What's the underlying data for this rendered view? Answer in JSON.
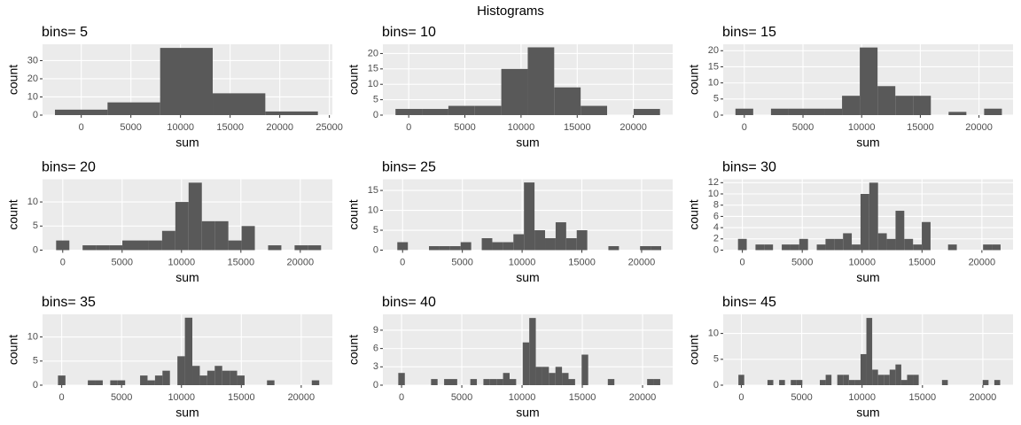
{
  "title": "Histograms",
  "chart_data": [
    {
      "type": "histogram",
      "title": "bins= 5",
      "xlabel": "sum",
      "ylabel": "count",
      "color": "#595959",
      "grid": true,
      "bins": [
        -2649,
        2649,
        7948,
        13246,
        18545,
        23843
      ],
      "values": [
        3,
        7,
        37,
        12,
        2
      ],
      "xlim": [
        -3900,
        25300
      ],
      "ylim": [
        0,
        39
      ],
      "xticks": [
        0,
        5000,
        10000,
        15000,
        20000,
        25000
      ],
      "yticks": [
        0,
        10,
        20,
        30
      ]
    },
    {
      "type": "histogram",
      "title": "bins= 10",
      "xlabel": "sum",
      "ylabel": "count",
      "color": "#595959",
      "grid": true,
      "bins": [
        -1177,
        1177,
        3532,
        5887,
        8242,
        10597,
        12952,
        15307,
        17662,
        20017,
        22371
      ],
      "values": [
        2,
        2,
        3,
        3,
        15,
        22,
        9,
        3,
        0,
        2
      ],
      "xlim": [
        -2300,
        23500
      ],
      "ylim": [
        0,
        23
      ],
      "xticks": [
        0,
        5000,
        10000,
        15000,
        20000
      ],
      "yticks": [
        0,
        5,
        10,
        15,
        20
      ]
    },
    {
      "type": "histogram",
      "title": "bins= 15",
      "xlabel": "sum",
      "ylabel": "count",
      "color": "#595959",
      "grid": true,
      "bins": [
        -757,
        757,
        2271,
        3785,
        5299,
        6813,
        8327,
        9840,
        11354,
        12868,
        14382,
        15896,
        17410,
        18924,
        20437,
        21951
      ],
      "values": [
        2,
        0,
        2,
        2,
        2,
        2,
        6,
        21,
        9,
        6,
        6,
        0,
        1,
        0,
        2
      ],
      "xlim": [
        -1800,
        22900
      ],
      "ylim": [
        0,
        22
      ],
      "xticks": [
        0,
        5000,
        10000,
        15000,
        20000
      ],
      "yticks": [
        0,
        5,
        10,
        15,
        20
      ]
    },
    {
      "type": "histogram",
      "title": "bins= 20",
      "xlabel": "sum",
      "ylabel": "count",
      "color": "#595959",
      "grid": true,
      "bins": [
        -558,
        558,
        1673,
        2788,
        3904,
        5019,
        6135,
        7250,
        8366,
        9481,
        10597,
        11712,
        12828,
        13943,
        15059,
        16174,
        17290,
        18405,
        19521,
        20636,
        21752
      ],
      "values": [
        2,
        0,
        1,
        1,
        1,
        2,
        2,
        2,
        4,
        10,
        14,
        6,
        6,
        2,
        5,
        0,
        1,
        0,
        1,
        1
      ],
      "xlim": [
        -1700,
        22700
      ],
      "ylim": [
        0,
        14.7
      ],
      "xticks": [
        0,
        5000,
        10000,
        15000,
        20000
      ],
      "yticks": [
        0,
        5,
        10
      ]
    },
    {
      "type": "histogram",
      "title": "bins= 25",
      "xlabel": "sum",
      "ylabel": "count",
      "color": "#595959",
      "grid": true,
      "bins": [
        -442,
        442,
        1325,
        2208,
        3091,
        3974,
        4857,
        5740,
        6623,
        7506,
        8389,
        9272,
        10155,
        11039,
        11922,
        12805,
        13688,
        14571,
        15454,
        16337,
        17220,
        18103,
        18986,
        19869,
        20753,
        21636
      ],
      "values": [
        2,
        0,
        0,
        1,
        1,
        1,
        2,
        0,
        3,
        2,
        2,
        4,
        17,
        5,
        3,
        7,
        3,
        5,
        0,
        0,
        1,
        0,
        0,
        1,
        1
      ],
      "xlim": [
        -1650,
        22600
      ],
      "ylim": [
        0,
        17.8
      ],
      "xticks": [
        0,
        5000,
        10000,
        15000,
        20000
      ],
      "yticks": [
        0,
        5,
        10,
        15
      ]
    },
    {
      "type": "histogram",
      "title": "bins= 30",
      "xlabel": "sum",
      "ylabel": "count",
      "color": "#595959",
      "grid": true,
      "bins": [
        -365,
        365,
        1096,
        1827,
        2558,
        3289,
        4020,
        4750,
        5481,
        6212,
        6943,
        7674,
        8405,
        9135,
        9866,
        10597,
        11328,
        12059,
        12790,
        13520,
        14251,
        14982,
        15713,
        16444,
        17175,
        17905,
        18636,
        19367,
        20098,
        20829,
        21560
      ],
      "values": [
        2,
        0,
        1,
        1,
        0,
        1,
        1,
        2,
        0,
        1,
        2,
        2,
        3,
        1,
        10,
        12,
        3,
        2,
        7,
        2,
        1,
        5,
        0,
        0,
        1,
        0,
        0,
        0,
        1,
        1
      ],
      "xlim": [
        -1600,
        22600
      ],
      "ylim": [
        0,
        12.6
      ],
      "xticks": [
        0,
        5000,
        10000,
        15000,
        20000
      ],
      "yticks": [
        0,
        2,
        4,
        6,
        8,
        10,
        12
      ]
    },
    {
      "type": "histogram",
      "title": "bins= 35",
      "xlabel": "sum",
      "ylabel": "count",
      "color": "#595959",
      "grid": true,
      "bins": [
        -312,
        312,
        935,
        1558,
        2182,
        2805,
        3428,
        4052,
        4675,
        5298,
        5922,
        6545,
        7168,
        7792,
        8415,
        9038,
        9662,
        10285,
        10908,
        11532,
        12155,
        12778,
        13402,
        14025,
        14648,
        15272,
        15895,
        16518,
        17142,
        17765,
        18388,
        19012,
        19635,
        20258,
        20882,
        21505
      ],
      "values": [
        2,
        0,
        0,
        0,
        1,
        1,
        0,
        1,
        1,
        0,
        0,
        2,
        1,
        2,
        3,
        0,
        6,
        14,
        4,
        2,
        3,
        4,
        3,
        3,
        2,
        0,
        0,
        0,
        1,
        0,
        0,
        0,
        0,
        0,
        1
      ],
      "xlim": [
        -1600,
        22600
      ],
      "ylim": [
        0,
        14.7
      ],
      "xticks": [
        0,
        5000,
        10000,
        15000,
        20000
      ],
      "yticks": [
        0,
        5,
        10
      ]
    },
    {
      "type": "histogram",
      "title": "bins= 40",
      "xlabel": "sum",
      "ylabel": "count",
      "color": "#595959",
      "grid": true,
      "bins": [
        -272,
        272,
        815,
        1359,
        1902,
        2446,
        2989,
        3532,
        4076,
        4619,
        5163,
        5706,
        6250,
        6793,
        7336,
        7880,
        8423,
        8967,
        9510,
        10054,
        10597,
        11141,
        11684,
        12228,
        12771,
        13314,
        13858,
        14401,
        14945,
        15488,
        16032,
        16575,
        17118,
        17662,
        18205,
        18749,
        19292,
        19836,
        20379,
        20923,
        21466
      ],
      "values": [
        2,
        0,
        0,
        0,
        0,
        1,
        0,
        1,
        1,
        0,
        0,
        1,
        0,
        1,
        1,
        1,
        2,
        1,
        0,
        7,
        11,
        3,
        3,
        2,
        3,
        2,
        1,
        0,
        5,
        0,
        0,
        0,
        1,
        0,
        0,
        0,
        0,
        0,
        1,
        1
      ],
      "xlim": [
        -1550,
        22500
      ],
      "ylim": [
        0,
        11.6
      ],
      "xticks": [
        0,
        5000,
        10000,
        15000,
        20000
      ],
      "yticks": [
        0,
        3,
        6,
        9
      ]
    },
    {
      "type": "histogram",
      "title": "bins= 45",
      "xlabel": "sum",
      "ylabel": "count",
      "color": "#595959",
      "grid": true,
      "bins": [
        -241,
        241,
        722,
        1204,
        1686,
        2167,
        2649,
        3131,
        3612,
        4094,
        4576,
        5057,
        5539,
        6021,
        6502,
        6984,
        7466,
        7947,
        8429,
        8911,
        9392,
        9874,
        10356,
        10837,
        11319,
        11801,
        12282,
        12764,
        13246,
        13727,
        14209,
        14691,
        15172,
        15654,
        16136,
        16617,
        17099,
        17581,
        18062,
        18544,
        19026,
        19507,
        19989,
        20471,
        20952,
        21434
      ],
      "values": [
        2,
        0,
        0,
        0,
        0,
        1,
        0,
        1,
        0,
        1,
        1,
        0,
        0,
        0,
        1,
        2,
        0,
        2,
        2,
        1,
        1,
        6,
        13,
        3,
        2,
        2,
        3,
        4,
        1,
        2,
        2,
        0,
        0,
        0,
        0,
        1,
        0,
        0,
        0,
        0,
        0,
        0,
        1,
        0,
        1
      ],
      "xlim": [
        -1500,
        22500
      ],
      "ylim": [
        0,
        13.7
      ],
      "xticks": [
        0,
        5000,
        10000,
        15000,
        20000
      ],
      "yticks": [
        0,
        5,
        10
      ]
    }
  ]
}
